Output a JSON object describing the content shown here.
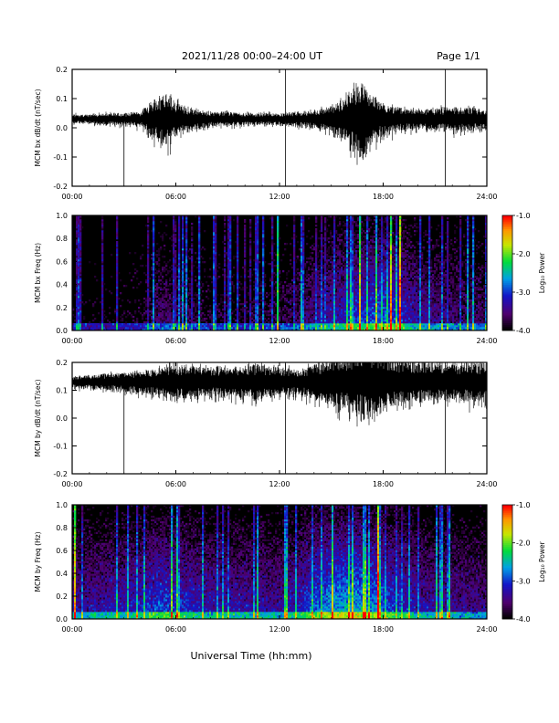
{
  "header": {
    "title": "2021/11/28  00:00–24:00 UT",
    "page": "Page 1/1"
  },
  "footer": {
    "xlabel": "Universal Time (hh:mm)"
  },
  "chart_data": [
    {
      "type": "line",
      "ylabel": "MCM bx dB/dt (nT/sec)",
      "ylim": [
        -0.2,
        0.2
      ],
      "yticks": [
        "0.2",
        "0.1",
        "0.0",
        "-0.1",
        "-0.2"
      ],
      "yticks_values": [
        0.2,
        0.1,
        0.0,
        -0.1,
        -0.2
      ],
      "xlim": [
        0,
        24
      ],
      "xticks": [
        "00:00",
        "06:00",
        "12:00",
        "18:00",
        "24:00"
      ],
      "baseline": 0.03,
      "envelope": {
        "x_hours": [
          0,
          1,
          2,
          3,
          4,
          4.6,
          5,
          5.5,
          6,
          6.5,
          7,
          8,
          9,
          10,
          11,
          12,
          13,
          14,
          15,
          15.8,
          16.3,
          16.8,
          17.3,
          17.8,
          18.5,
          19,
          20,
          21,
          22,
          23,
          24
        ],
        "amplitude": [
          0.015,
          0.015,
          0.02,
          0.02,
          0.025,
          0.06,
          0.07,
          0.09,
          0.06,
          0.04,
          0.035,
          0.025,
          0.025,
          0.02,
          0.02,
          0.02,
          0.025,
          0.03,
          0.045,
          0.07,
          0.11,
          0.13,
          0.08,
          0.06,
          0.045,
          0.04,
          0.035,
          0.035,
          0.04,
          0.04,
          0.035
        ]
      },
      "spikes": [
        {
          "t": 3.0,
          "min": -0.2,
          "max": 0.04
        },
        {
          "t": 12.35,
          "min": -0.2,
          "max": 0.2
        },
        {
          "t": 21.6,
          "min": -0.2,
          "max": 0.2
        }
      ],
      "color": "#000000"
    },
    {
      "type": "heatmap",
      "ylabel": "MCM bx Freq (Hz)",
      "ylim": [
        0.0,
        1.0
      ],
      "yticks": [
        "1.0",
        "0.8",
        "0.6",
        "0.4",
        "0.2",
        "0.0"
      ],
      "yticks_values": [
        1.0,
        0.8,
        0.6,
        0.4,
        0.2,
        0.0
      ],
      "xlim": [
        0,
        24
      ],
      "xticks": [
        "00:00",
        "06:00",
        "12:00",
        "18:00",
        "24:00"
      ],
      "colorbar": {
        "label": "Log₁₀ Power",
        "range": [
          -4.0,
          -1.0
        ],
        "ticks": [
          "-1.0",
          "-2.0",
          "-3.0",
          "-4.0"
        ],
        "ticks_values": [
          -1.0,
          -2.0,
          -3.0,
          -4.0
        ]
      },
      "activity": {
        "x_hours": [
          0,
          2,
          4,
          5,
          6,
          8,
          10,
          12,
          14,
          15,
          16,
          17,
          18,
          19,
          20,
          21,
          22,
          24
        ],
        "level": [
          0.25,
          0.2,
          0.3,
          0.45,
          0.4,
          0.3,
          0.3,
          0.35,
          0.5,
          0.6,
          0.7,
          0.75,
          0.8,
          0.7,
          0.55,
          0.5,
          0.45,
          0.4
        ]
      }
    },
    {
      "type": "line",
      "ylabel": "MCM by dB/dt (nT/sec)",
      "ylim": [
        -0.2,
        0.2
      ],
      "yticks": [
        "0.2",
        "0.1",
        "0.0",
        "-0.1",
        "-0.2"
      ],
      "yticks_values": [
        0.2,
        0.1,
        0.0,
        -0.1,
        -0.2
      ],
      "xlim": [
        0,
        24
      ],
      "xticks": [
        "00:00",
        "06:00",
        "12:00",
        "18:00",
        "24:00"
      ],
      "baseline": 0.13,
      "envelope": {
        "x_hours": [
          0,
          1,
          2,
          3,
          4,
          5,
          6,
          7,
          8,
          9,
          10,
          11,
          12,
          13,
          14,
          15,
          16,
          17,
          18,
          19,
          20,
          21,
          22,
          23,
          24
        ],
        "amplitude": [
          0.02,
          0.025,
          0.03,
          0.035,
          0.04,
          0.05,
          0.06,
          0.06,
          0.05,
          0.055,
          0.06,
          0.06,
          0.05,
          0.045,
          0.06,
          0.08,
          0.1,
          0.12,
          0.1,
          0.08,
          0.07,
          0.07,
          0.065,
          0.07,
          0.07
        ]
      },
      "spikes": [
        {
          "t": 3.0,
          "min": -0.2,
          "max": 0.15
        },
        {
          "t": 12.35,
          "min": -0.2,
          "max": 0.2
        },
        {
          "t": 21.6,
          "min": -0.2,
          "max": 0.2
        }
      ],
      "color": "#000000"
    },
    {
      "type": "heatmap",
      "ylabel": "MCM by Freq (Hz)",
      "ylim": [
        0.0,
        1.0
      ],
      "yticks": [
        "1.0",
        "0.8",
        "0.6",
        "0.4",
        "0.2",
        "0.0"
      ],
      "yticks_values": [
        1.0,
        0.8,
        0.6,
        0.4,
        0.2,
        0.0
      ],
      "xlim": [
        0,
        24
      ],
      "xticks": [
        "00:00",
        "06:00",
        "12:00",
        "18:00",
        "24:00"
      ],
      "colorbar": {
        "label": "Log₁₀ Power",
        "range": [
          -4.0,
          -1.0
        ],
        "ticks": [
          "-1.0",
          "-2.0",
          "-3.0",
          "-4.0"
        ],
        "ticks_values": [
          -1.0,
          -2.0,
          -3.0,
          -4.0
        ]
      },
      "activity": {
        "x_hours": [
          0,
          2,
          4,
          5,
          6,
          8,
          10,
          12,
          13,
          14,
          15,
          16,
          17,
          18,
          19,
          20,
          21,
          22,
          24
        ],
        "level": [
          0.55,
          0.6,
          0.65,
          0.75,
          0.7,
          0.6,
          0.6,
          0.55,
          0.65,
          0.8,
          0.9,
          0.95,
          0.9,
          0.8,
          0.7,
          0.6,
          0.55,
          0.55,
          0.5
        ]
      }
    }
  ]
}
